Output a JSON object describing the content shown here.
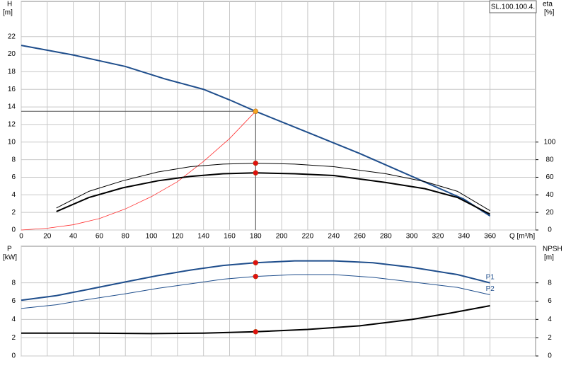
{
  "chart_data": [
    {
      "type": "line",
      "title": "SL.100.100.4.",
      "ylabel": "H",
      "yunit": "[m]",
      "y2label": "eta",
      "y2unit": "[%]",
      "xlabel": "Q [m³/h]",
      "xlim": [
        0,
        395
      ],
      "xticks": [
        0,
        20,
        40,
        60,
        80,
        100,
        120,
        140,
        160,
        180,
        200,
        220,
        240,
        260,
        280,
        300,
        320,
        340,
        360
      ],
      "ylim": [
        0,
        26
      ],
      "yticks": [
        0,
        2,
        4,
        6,
        8,
        10,
        12,
        14,
        16,
        18,
        20,
        22
      ],
      "y2lim": [
        0,
        260
      ],
      "y2ticks": [
        0,
        20,
        40,
        60,
        80,
        100
      ],
      "grid": true,
      "reference": {
        "x": 180,
        "y": 13.5
      },
      "series": [
        {
          "color": "#1f4e8c",
          "width": 2,
          "x": [
            0,
            40,
            80,
            110,
            140,
            160,
            180,
            220,
            260,
            300,
            340,
            360
          ],
          "values": [
            21,
            19.9,
            18.6,
            17.2,
            16,
            14.8,
            13.5,
            11.1,
            8.7,
            6.1,
            3.5,
            1.6
          ]
        },
        {
          "color": "#ff3030",
          "width": 0.8,
          "x": [
            0,
            20,
            40,
            60,
            80,
            100,
            120,
            140,
            160,
            180
          ],
          "values": [
            0,
            0.2,
            0.6,
            1.3,
            2.4,
            3.8,
            5.5,
            7.8,
            10.4,
            13.5
          ]
        },
        {
          "color": "#000000",
          "width": 1,
          "axis": "y2",
          "x": [
            27,
            52,
            78,
            105,
            130,
            155,
            180,
            210,
            240,
            280,
            310,
            335,
            360
          ],
          "values": [
            25,
            44,
            56,
            66,
            72,
            75,
            76,
            75,
            72,
            64,
            55,
            44,
            22
          ]
        },
        {
          "color": "#000000",
          "width": 2,
          "axis": "y2",
          "x": [
            27,
            52,
            78,
            105,
            130,
            155,
            180,
            210,
            240,
            280,
            310,
            335,
            360
          ],
          "values": [
            21,
            37,
            48,
            56,
            61,
            64,
            65,
            64,
            62,
            54,
            47,
            37,
            18
          ]
        }
      ],
      "points": [
        {
          "x": 180,
          "y": 13.5,
          "color": "#f5a623"
        },
        {
          "x": 180,
          "y": 76,
          "axis": "y2",
          "color": "#e01010"
        },
        {
          "x": 180,
          "y": 65,
          "axis": "y2",
          "color": "#e01010"
        }
      ]
    },
    {
      "type": "line",
      "ylabel": "P",
      "yunit": "[kW]",
      "y2label": "NPSH",
      "y2unit": "[m]",
      "xlim": [
        0,
        395
      ],
      "xticks": [
        0,
        20,
        40,
        60,
        80,
        100,
        120,
        140,
        160,
        180,
        200,
        220,
        240,
        260,
        280,
        300,
        320,
        340,
        360
      ],
      "ylim": [
        0,
        12
      ],
      "yticks": [
        0,
        2,
        4,
        6,
        8
      ],
      "y2lim": [
        0,
        12
      ],
      "y2ticks": [
        0,
        2,
        4,
        6,
        8
      ],
      "grid": true,
      "series": [
        {
          "name": "P1",
          "color": "#1f4e8c",
          "width": 2,
          "x": [
            0,
            27,
            52,
            80,
            105,
            130,
            155,
            180,
            210,
            240,
            270,
            300,
            335,
            360
          ],
          "values": [
            6.1,
            6.6,
            7.3,
            8.1,
            8.8,
            9.4,
            9.9,
            10.2,
            10.4,
            10.4,
            10.2,
            9.7,
            8.9,
            8.0
          ]
        },
        {
          "name": "P2",
          "color": "#1f4e8c",
          "width": 1,
          "x": [
            0,
            27,
            52,
            80,
            105,
            130,
            155,
            180,
            210,
            240,
            270,
            300,
            335,
            360
          ],
          "values": [
            5.2,
            5.6,
            6.2,
            6.8,
            7.4,
            7.9,
            8.4,
            8.7,
            8.9,
            8.9,
            8.6,
            8.1,
            7.5,
            6.7
          ]
        },
        {
          "color": "#000000",
          "width": 2,
          "axis": "y2",
          "x": [
            0,
            50,
            100,
            140,
            180,
            220,
            260,
            300,
            330,
            360
          ],
          "values": [
            2.5,
            2.5,
            2.45,
            2.5,
            2.65,
            2.9,
            3.3,
            4.0,
            4.7,
            5.5
          ]
        }
      ],
      "points": [
        {
          "x": 180,
          "y": 10.2,
          "color": "#e01010"
        },
        {
          "x": 180,
          "y": 8.7,
          "color": "#e01010"
        },
        {
          "x": 180,
          "y": 2.65,
          "axis": "y2",
          "color": "#e01010"
        }
      ]
    }
  ]
}
